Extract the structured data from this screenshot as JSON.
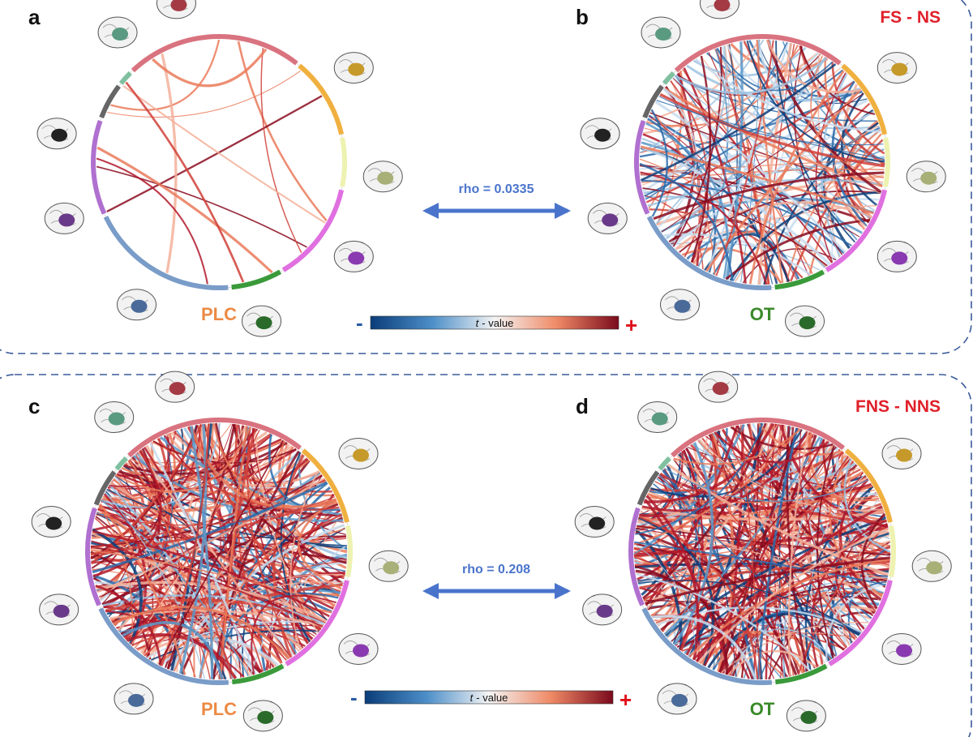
{
  "panels": [
    {
      "letter": "a",
      "label": "PLC"
    },
    {
      "letter": "b",
      "title": "FS - NS",
      "label": "OT"
    },
    {
      "letter": "c",
      "label": "PLC"
    },
    {
      "letter": "d",
      "title": "FNS - NNS",
      "label": "OT"
    }
  ],
  "comparisons": [
    {
      "text": "rho = 0.0335"
    },
    {
      "text": "rho = 0.208"
    }
  ],
  "colorbars": [
    {
      "minus": "-",
      "plus": "+",
      "symbol": "t",
      "text": "- value"
    },
    {
      "minus": "-",
      "plus": "+",
      "symbol": "t",
      "text": "- value"
    }
  ]
}
